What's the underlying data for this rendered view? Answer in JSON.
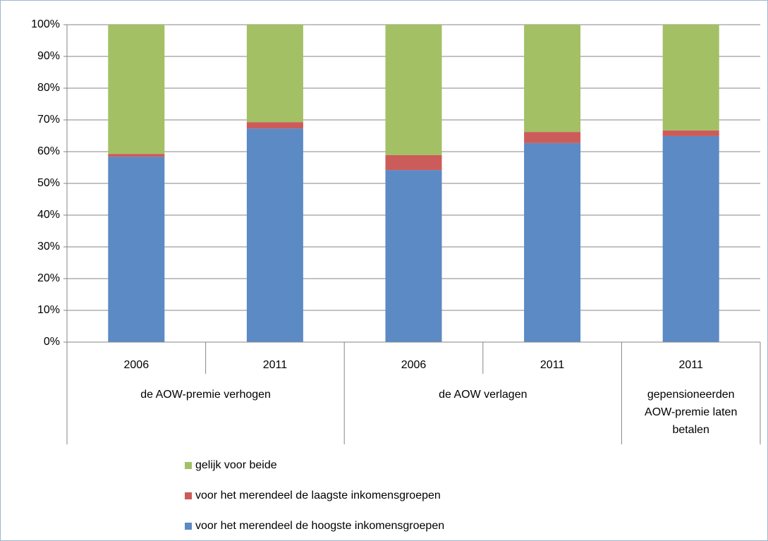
{
  "chart_data": {
    "type": "stacked-bar",
    "categories": [
      "2006",
      "2011",
      "2006",
      "2011",
      "2011"
    ],
    "groups": [
      {
        "label_lines": [
          "de AOW-premie verhogen"
        ],
        "size": 2
      },
      {
        "label_lines": [
          "de AOW verlagen"
        ],
        "size": 2
      },
      {
        "label_lines": [
          "gepensioneerden",
          "AOW-premie laten",
          "betalen"
        ],
        "size": 1
      }
    ],
    "series": [
      {
        "name": "voor het merendeel de hoogste inkomensgroepen",
        "color": "#5b8ac4",
        "values": [
          58.4,
          67.3,
          54.2,
          62.7,
          64.9
        ]
      },
      {
        "name": "voor het merendeel de laagste inkomensgroepen",
        "color": "#cc5c5a",
        "values": [
          0.9,
          2.0,
          4.7,
          3.5,
          1.8
        ]
      },
      {
        "name": "gelijk voor beide",
        "color": "#a3c065",
        "values": [
          40.7,
          30.7,
          41.1,
          33.8,
          33.3
        ]
      }
    ],
    "ylim": [
      0,
      100
    ],
    "yticks": [
      {
        "value": 0,
        "label": "0%"
      },
      {
        "value": 10,
        "label": "10%"
      },
      {
        "value": 20,
        "label": "20%"
      },
      {
        "value": 30,
        "label": "30%"
      },
      {
        "value": 40,
        "label": "40%"
      },
      {
        "value": 50,
        "label": "50%"
      },
      {
        "value": 60,
        "label": "60%"
      },
      {
        "value": 70,
        "label": "70%"
      },
      {
        "value": 80,
        "label": "80%"
      },
      {
        "value": 90,
        "label": "90%"
      },
      {
        "value": 100,
        "label": "100%"
      }
    ],
    "grid": true,
    "legend": "bottom"
  }
}
